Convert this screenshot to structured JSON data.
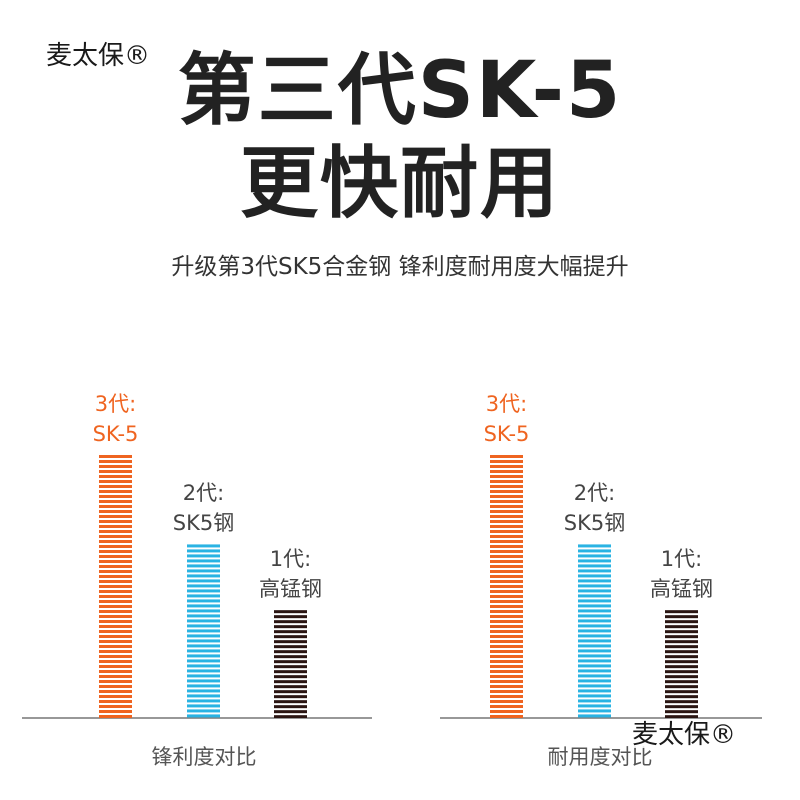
{
  "brand": "麦太保®",
  "title_line1": "第三代SK-5",
  "title_line2": "更快耐用",
  "subtitle": "升级第3代SK5合金钢 锋利度耐用度大幅提升",
  "colors": {
    "gen3": "#ef6420",
    "gen2": "#2ab3e3",
    "gen1": "#2a1512",
    "baseline": "#777777"
  },
  "chart_data": [
    {
      "type": "bar",
      "xlabel": "锋利度对比",
      "categories": [
        "3代: SK-5",
        "2代: SK5钢",
        "1代: 高锰钢"
      ],
      "series": [
        {
          "values": [
            100,
            66,
            41
          ]
        }
      ]
    },
    {
      "type": "bar",
      "xlabel": "耐用度对比",
      "categories": [
        "3代: SK-5",
        "2代: SK5钢",
        "1代: 高锰钢"
      ],
      "series": [
        {
          "values": [
            100,
            66,
            41
          ]
        }
      ]
    }
  ],
  "bar_labels": [
    {
      "line1": "3代:",
      "line2": "SK-5"
    },
    {
      "line1": "2代:",
      "line2": "SK5钢"
    },
    {
      "line1": "1代:",
      "line2": "高锰钢"
    }
  ]
}
